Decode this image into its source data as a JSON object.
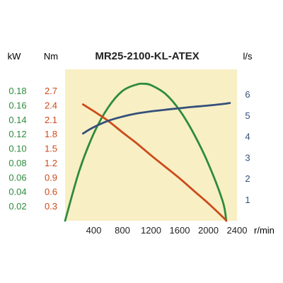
{
  "chart_data": {
    "type": "line",
    "title": "MR25-2100-KL-ATEX",
    "x": {
      "label": "r/min",
      "range": [
        0,
        2400
      ],
      "ticks": [
        400,
        800,
        1200,
        1600,
        2000,
        2400
      ],
      "tick_labels": [
        "400",
        "800",
        "1200",
        "1600",
        "2000",
        "2400"
      ]
    },
    "axes": {
      "power": {
        "unit": "kW",
        "color": "#2e8b3e",
        "range": [
          0,
          0.21
        ],
        "ticks": [
          0.02,
          0.04,
          0.06,
          0.08,
          0.1,
          0.12,
          0.14,
          0.16,
          0.18
        ],
        "tick_labels": [
          "0.02",
          "0.04",
          "0.06",
          "0.08",
          "0.10",
          "0.12",
          "0.14",
          "0.16",
          "0.18"
        ]
      },
      "torque": {
        "unit": "Nm",
        "color": "#cc4a1a",
        "range": [
          0,
          3.15
        ],
        "ticks": [
          0.3,
          0.6,
          0.9,
          1.2,
          1.5,
          1.8,
          2.1,
          2.4,
          2.7
        ],
        "tick_labels": [
          "0.3",
          "0.6",
          "0.9",
          "1.2",
          "1.5",
          "1.8",
          "2.1",
          "2.4",
          "2.7"
        ]
      },
      "flow": {
        "unit": "l/s",
        "color": "#34507a",
        "range": [
          0,
          7.2
        ],
        "ticks": [
          1,
          2,
          3,
          4,
          5,
          6
        ],
        "tick_labels": [
          "1",
          "2",
          "3",
          "4",
          "5",
          "6"
        ]
      }
    },
    "series": [
      {
        "axis": "power",
        "color": "#2e8b3e",
        "x": [
          0,
          200,
          400,
          600,
          800,
          1000,
          1100,
          1200,
          1400,
          1600,
          1800,
          2000,
          2200,
          2250
        ],
        "y": [
          0,
          0.07,
          0.121,
          0.157,
          0.18,
          0.189,
          0.19,
          0.188,
          0.176,
          0.153,
          0.12,
          0.079,
          0.027,
          0
        ]
      },
      {
        "axis": "torque",
        "color": "#cc4a1a",
        "x": [
          250,
          400,
          600,
          800,
          1000,
          1200,
          1400,
          1600,
          1800,
          2000,
          2200,
          2250
        ],
        "y": [
          2.42,
          2.28,
          2.08,
          1.84,
          1.61,
          1.36,
          1.12,
          0.88,
          0.62,
          0.36,
          0.08,
          0
        ]
      },
      {
        "axis": "flow",
        "color": "#34507a",
        "x": [
          250,
          400,
          600,
          800,
          1000,
          1200,
          1400,
          1600,
          1800,
          2000,
          2200,
          2300
        ],
        "y": [
          4.15,
          4.45,
          4.75,
          4.95,
          5.1,
          5.2,
          5.28,
          5.35,
          5.42,
          5.48,
          5.55,
          5.6
        ]
      }
    ],
    "grid": false,
    "background": "#f8efc4"
  }
}
